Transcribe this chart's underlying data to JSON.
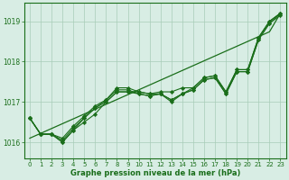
{
  "x": [
    0,
    1,
    2,
    3,
    4,
    5,
    6,
    7,
    8,
    9,
    10,
    11,
    12,
    13,
    14,
    15,
    16,
    17,
    18,
    19,
    20,
    21,
    22,
    23
  ],
  "line1": [
    1016.6,
    1016.2,
    1016.2,
    1016.0,
    1016.3,
    1016.5,
    1016.7,
    1017.0,
    1017.25,
    1017.25,
    1017.25,
    1017.2,
    1017.2,
    1017.0,
    1017.2,
    1017.35,
    1017.6,
    1017.65,
    1017.25,
    1017.8,
    1017.8,
    1018.6,
    1019.0,
    1019.2
  ],
  "line2": [
    1016.6,
    1016.2,
    1016.2,
    1016.0,
    1016.3,
    1016.6,
    1016.85,
    1017.05,
    1017.35,
    1017.35,
    1017.25,
    1017.2,
    1017.25,
    1017.25,
    1017.35,
    1017.35,
    1017.6,
    1017.65,
    1017.25,
    1017.8,
    1017.8,
    1018.6,
    1019.0,
    1019.2
  ],
  "line3": [
    1016.6,
    1016.2,
    1016.2,
    1016.1,
    1016.4,
    1016.65,
    1016.9,
    1017.05,
    1017.3,
    1017.3,
    1017.2,
    1017.15,
    1017.2,
    1017.05,
    1017.2,
    1017.3,
    1017.55,
    1017.6,
    1017.2,
    1017.75,
    1017.75,
    1018.55,
    1018.95,
    1019.2
  ],
  "line4": [
    1016.6,
    1016.2,
    1016.2,
    1016.05,
    1016.35,
    1016.6,
    1016.85,
    1017.0,
    1017.25,
    1017.25,
    1017.2,
    1017.15,
    1017.2,
    1017.05,
    1017.2,
    1017.3,
    1017.55,
    1017.6,
    1017.2,
    1017.75,
    1017.75,
    1018.55,
    1018.95,
    1019.15
  ],
  "trend_line": [
    1016.1,
    1016.22,
    1016.34,
    1016.46,
    1016.58,
    1016.7,
    1016.82,
    1016.94,
    1017.06,
    1017.18,
    1017.3,
    1017.42,
    1017.54,
    1017.66,
    1017.78,
    1017.9,
    1018.02,
    1018.14,
    1018.26,
    1018.38,
    1018.5,
    1018.62,
    1018.74,
    1019.2
  ],
  "ylim": [
    1015.6,
    1019.45
  ],
  "yticks": [
    1016,
    1017,
    1018,
    1019
  ],
  "xticks": [
    0,
    1,
    2,
    3,
    4,
    5,
    6,
    7,
    8,
    9,
    10,
    11,
    12,
    13,
    14,
    15,
    16,
    17,
    18,
    19,
    20,
    21,
    22,
    23
  ],
  "line_color": "#1a6e1a",
  "marker_color": "#1a6e1a",
  "bg_color": "#d8ede4",
  "grid_color": "#a8ccb8",
  "xlabel": "Graphe pression niveau de la mer (hPa)",
  "xlabel_color": "#1a6e1a",
  "tick_color": "#1a6e1a",
  "border_color": "#1a6e1a"
}
